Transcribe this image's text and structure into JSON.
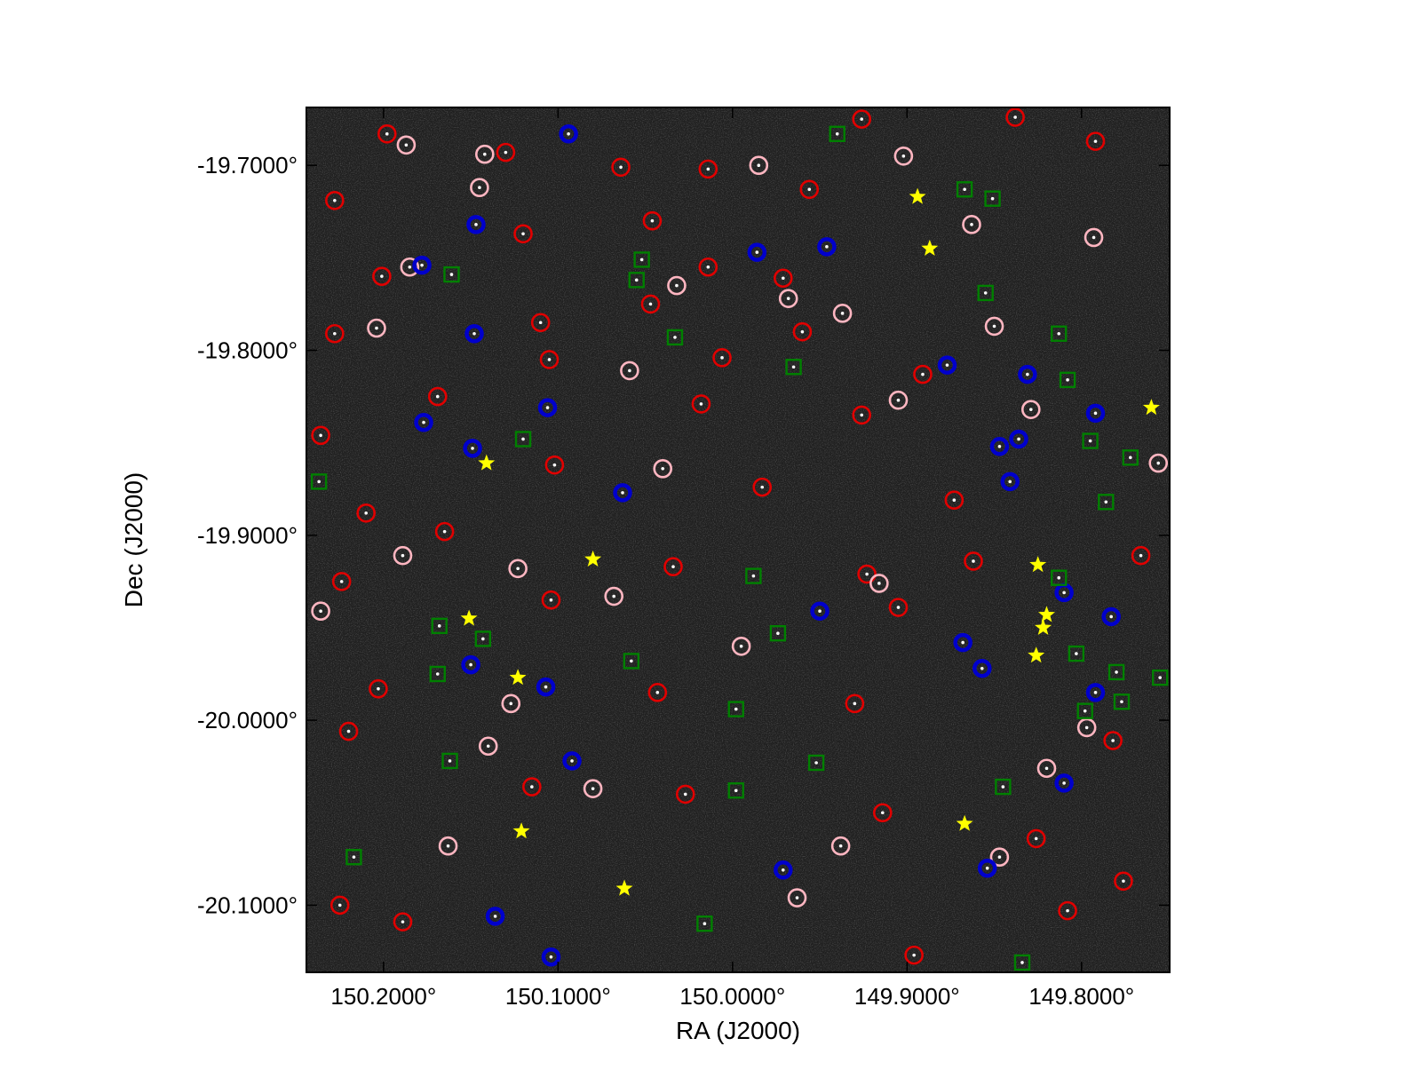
{
  "chart_data": {
    "type": "scatter",
    "x_label": "RA (J2000)",
    "y_label": "Dec (J2000)",
    "xlim": [
      150.2442,
      149.7495
    ],
    "ylim": [
      -20.1363,
      -19.6687
    ],
    "xticks": [
      {
        "value": 150.2,
        "label": "150.2000°"
      },
      {
        "value": 150.1,
        "label": "150.1000°"
      },
      {
        "value": 150.0,
        "label": "150.0000°"
      },
      {
        "value": 149.9,
        "label": "149.9000°"
      },
      {
        "value": 149.8,
        "label": "149.8000°"
      }
    ],
    "yticks": [
      {
        "value": -19.7,
        "label": "-19.7000°"
      },
      {
        "value": -19.8,
        "label": "-19.8000°"
      },
      {
        "value": -19.9,
        "label": "-19.9000°"
      },
      {
        "value": -20.0,
        "label": "-20.0000°"
      },
      {
        "value": -20.1,
        "label": "-20.1000°"
      }
    ],
    "grid": false,
    "series": [
      {
        "marker": "circle",
        "color": "#e00000",
        "x": [
          150.198,
          150.13,
          150.064,
          150.014,
          149.956,
          149.926,
          149.838,
          149.792,
          150.228,
          150.12,
          150.046,
          150.014,
          150.201,
          149.971,
          150.047,
          150.11,
          150.228,
          149.96,
          150.105,
          150.006,
          149.891,
          150.169,
          150.018,
          149.926,
          150.236,
          150.102,
          149.983,
          149.873,
          150.21,
          150.165,
          150.034,
          149.923,
          149.862,
          149.766,
          150.224,
          150.104,
          149.905,
          150.203,
          150.043,
          149.93,
          150.22,
          149.782,
          150.115,
          150.027,
          149.914,
          149.826,
          150.225,
          150.189,
          149.896,
          149.808,
          149.776
        ],
        "y": [
          -19.683,
          -19.693,
          -19.701,
          -19.702,
          -19.713,
          -19.675,
          -19.674,
          -19.687,
          -19.719,
          -19.737,
          -19.73,
          -19.755,
          -19.76,
          -19.761,
          -19.775,
          -19.785,
          -19.791,
          -19.79,
          -19.805,
          -19.804,
          -19.813,
          -19.825,
          -19.829,
          -19.835,
          -19.846,
          -19.862,
          -19.874,
          -19.881,
          -19.888,
          -19.898,
          -19.917,
          -19.921,
          -19.914,
          -19.911,
          -19.925,
          -19.935,
          -19.939,
          -19.983,
          -19.985,
          -19.991,
          -20.006,
          -20.011,
          -20.036,
          -20.04,
          -20.05,
          -20.064,
          -20.1,
          -20.109,
          -20.127,
          -20.103,
          -20.087
        ]
      },
      {
        "marker": "circle",
        "color": "#ffb6c1",
        "x": [
          150.187,
          150.142,
          150.145,
          149.985,
          149.902,
          149.863,
          149.793,
          150.185,
          150.032,
          149.968,
          149.937,
          149.85,
          150.204,
          150.059,
          149.905,
          149.829,
          150.04,
          150.189,
          150.123,
          150.068,
          149.916,
          150.236,
          149.995,
          150.127,
          150.14,
          150.08,
          150.163,
          149.938,
          149.847,
          149.963,
          149.82,
          149.797,
          149.756
        ],
        "y": [
          -19.689,
          -19.694,
          -19.712,
          -19.7,
          -19.695,
          -19.732,
          -19.739,
          -19.755,
          -19.765,
          -19.772,
          -19.78,
          -19.787,
          -19.788,
          -19.811,
          -19.827,
          -19.832,
          -19.864,
          -19.911,
          -19.918,
          -19.933,
          -19.926,
          -19.941,
          -19.96,
          -19.991,
          -20.014,
          -20.037,
          -20.068,
          -20.068,
          -20.074,
          -20.096,
          -20.026,
          -20.004,
          -19.861
        ]
      },
      {
        "marker": "circle-thick",
        "color": "#0000cc",
        "x": [
          150.094,
          150.147,
          149.946,
          149.986,
          150.178,
          150.148,
          149.877,
          149.831,
          150.106,
          149.792,
          150.177,
          149.836,
          149.847,
          150.149,
          149.841,
          150.063,
          149.81,
          149.95,
          149.783,
          149.868,
          149.857,
          150.15,
          150.107,
          149.792,
          150.092,
          149.81,
          149.971,
          149.854,
          150.136,
          150.104
        ],
        "y": [
          -19.683,
          -19.732,
          -19.744,
          -19.747,
          -19.754,
          -19.791,
          -19.808,
          -19.813,
          -19.831,
          -19.834,
          -19.839,
          -19.848,
          -19.852,
          -19.853,
          -19.871,
          -19.877,
          -19.931,
          -19.941,
          -19.944,
          -19.958,
          -19.972,
          -19.97,
          -19.982,
          -19.985,
          -20.022,
          -20.034,
          -20.081,
          -20.08,
          -20.106,
          -20.128
        ]
      },
      {
        "marker": "square",
        "color": "#008000",
        "x": [
          149.94,
          149.867,
          149.851,
          150.052,
          150.055,
          150.161,
          149.855,
          150.033,
          149.813,
          149.965,
          149.808,
          150.12,
          149.795,
          149.772,
          150.237,
          149.786,
          149.988,
          149.813,
          150.168,
          150.143,
          149.974,
          149.803,
          150.058,
          150.169,
          149.78,
          149.755,
          149.798,
          149.777,
          149.998,
          150.162,
          149.952,
          149.998,
          149.845,
          150.217,
          150.016,
          149.834
        ],
        "y": [
          -19.683,
          -19.713,
          -19.718,
          -19.751,
          -19.762,
          -19.759,
          -19.769,
          -19.793,
          -19.791,
          -19.809,
          -19.816,
          -19.848,
          -19.849,
          -19.858,
          -19.871,
          -19.882,
          -19.922,
          -19.923,
          -19.949,
          -19.956,
          -19.953,
          -19.964,
          -19.968,
          -19.975,
          -19.974,
          -19.977,
          -19.995,
          -19.99,
          -19.994,
          -20.022,
          -20.023,
          -20.038,
          -20.036,
          -20.074,
          -20.11,
          -20.131
        ]
      },
      {
        "marker": "star",
        "color": "#ffff00",
        "x": [
          149.894,
          149.887,
          150.141,
          149.76,
          150.08,
          149.825,
          150.151,
          149.82,
          149.822,
          149.826,
          150.123,
          150.121,
          149.867,
          150.062
        ],
        "y": [
          -19.717,
          -19.745,
          -19.861,
          -19.831,
          -19.913,
          -19.916,
          -19.945,
          -19.943,
          -19.95,
          -19.965,
          -19.977,
          -20.06,
          -20.056,
          -20.091
        ]
      }
    ]
  }
}
